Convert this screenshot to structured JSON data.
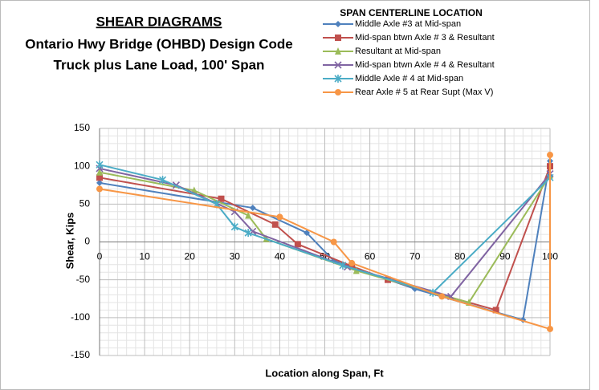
{
  "chart_data": {
    "type": "line",
    "title": "SHEAR DIAGRAMS",
    "subtitle": [
      "Ontario Hwy Bridge (OHBD) Design Code",
      "Truck plus Lane Load, 100' Span"
    ],
    "legend_title": "SPAN CENTERLINE LOCATION",
    "x_label": "Location along Span, Ft",
    "y_label": "Shear, Kips",
    "xlim": [
      0,
      100
    ],
    "xticks": [
      0,
      10,
      20,
      30,
      40,
      50,
      60,
      70,
      80,
      90,
      100
    ],
    "ylim": [
      -150,
      150
    ],
    "yticks": [
      -150,
      -100,
      -50,
      0,
      50,
      100,
      150
    ],
    "grid": true,
    "series": [
      {
        "name": "Middle Axle #3 at Mid-span",
        "color": "#4F81BD",
        "marker": "diamond",
        "x": [
          0,
          34,
          46,
          52,
          56,
          70,
          94,
          100
        ],
        "values": [
          78,
          45,
          12,
          -25,
          -33,
          -62,
          -103,
          107
        ]
      },
      {
        "name": "Mid-span btwn Axle # 3 & Resultant",
        "color": "#C0504D",
        "marker": "square",
        "x": [
          0,
          27,
          39,
          44,
          56,
          64,
          88,
          100
        ],
        "values": [
          85,
          57,
          23,
          -3,
          -32,
          -50,
          -90,
          100
        ]
      },
      {
        "name": "Resultant at Mid-span",
        "color": "#9BBB59",
        "marker": "triangle",
        "x": [
          0,
          21,
          33,
          37,
          57,
          82,
          100
        ],
        "values": [
          92,
          68,
          35,
          4,
          -38,
          -80,
          88
        ]
      },
      {
        "name": "Mid-span btwn Axle # 4 & Resultant",
        "color": "#8064A2",
        "marker": "x",
        "x": [
          0,
          17,
          30,
          34,
          55,
          78,
          100
        ],
        "values": [
          97,
          75,
          40,
          14,
          -33,
          -72,
          90
        ]
      },
      {
        "name": "Middle Axle # 4 at Mid-span",
        "color": "#4BACC6",
        "marker": "star",
        "x": [
          0,
          14,
          26,
          30,
          33,
          54,
          74,
          100
        ],
        "values": [
          102,
          82,
          50,
          20,
          12,
          -31,
          -67,
          85
        ]
      },
      {
        "name": "Rear Axle # 5 at Rear Supt (Max V)",
        "color": "#F79646",
        "marker": "circle",
        "x": [
          0,
          40,
          52,
          56,
          76,
          100,
          100
        ],
        "values": [
          70,
          33,
          0,
          -28,
          -72,
          -115,
          115
        ]
      }
    ]
  }
}
